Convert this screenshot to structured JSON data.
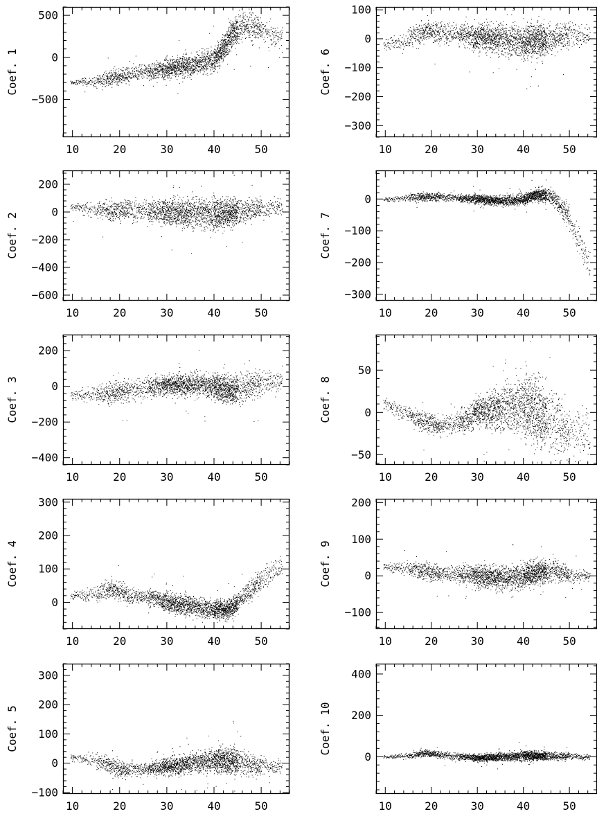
{
  "chart_data": [
    {
      "type": "scatter",
      "panel": "Coef. 1",
      "ylabel": "Coef. 1",
      "xlim": [
        8,
        56
      ],
      "ylim": [
        -950,
        600
      ],
      "xticks": [
        10,
        20,
        30,
        40,
        50
      ],
      "yticks": [
        -500,
        0,
        500
      ],
      "trend": [
        [
          10,
          -300
        ],
        [
          15,
          -280
        ],
        [
          18,
          -240
        ],
        [
          22,
          -210
        ],
        [
          27,
          -160
        ],
        [
          30,
          -130
        ],
        [
          34,
          -100
        ],
        [
          38,
          -60
        ],
        [
          40,
          -20
        ],
        [
          42,
          120
        ],
        [
          44,
          300
        ],
        [
          46,
          380
        ],
        [
          50,
          330
        ],
        [
          53,
          250
        ]
      ],
      "spread": [
        [
          10,
          20
        ],
        [
          17,
          80
        ],
        [
          25,
          80
        ],
        [
          30,
          100
        ],
        [
          40,
          120
        ],
        [
          46,
          150
        ],
        [
          53,
          120
        ]
      ]
    },
    {
      "type": "scatter",
      "panel": "Coef. 6",
      "ylabel": "Coef. 6",
      "xlim": [
        8,
        56
      ],
      "ylim": [
        -340,
        110
      ],
      "xticks": [
        10,
        20,
        30,
        40,
        50
      ],
      "yticks": [
        -300,
        -200,
        -100,
        0,
        100
      ],
      "trend": [
        [
          10,
          -20
        ],
        [
          15,
          0
        ],
        [
          19,
          30
        ],
        [
          22,
          20
        ],
        [
          27,
          15
        ],
        [
          30,
          5
        ],
        [
          35,
          0
        ],
        [
          40,
          -10
        ],
        [
          45,
          0
        ],
        [
          50,
          15
        ],
        [
          54,
          10
        ]
      ],
      "spread": [
        [
          10,
          15
        ],
        [
          17,
          35
        ],
        [
          25,
          30
        ],
        [
          30,
          40
        ],
        [
          40,
          50
        ],
        [
          46,
          45
        ],
        [
          53,
          30
        ]
      ]
    },
    {
      "type": "scatter",
      "panel": "Coef. 2",
      "ylabel": "Coef. 2",
      "xlim": [
        8,
        56
      ],
      "ylim": [
        -640,
        300
      ],
      "xticks": [
        10,
        20,
        30,
        40,
        50
      ],
      "yticks": [
        -600,
        -400,
        -200,
        0,
        200
      ],
      "trend": [
        [
          10,
          40
        ],
        [
          15,
          20
        ],
        [
          20,
          10
        ],
        [
          25,
          10
        ],
        [
          30,
          0
        ],
        [
          35,
          -5
        ],
        [
          40,
          -10
        ],
        [
          43,
          0
        ],
        [
          47,
          10
        ],
        [
          52,
          30
        ]
      ],
      "spread": [
        [
          10,
          30
        ],
        [
          17,
          60
        ],
        [
          25,
          70
        ],
        [
          30,
          80
        ],
        [
          40,
          100
        ],
        [
          46,
          80
        ],
        [
          53,
          50
        ]
      ]
    },
    {
      "type": "scatter",
      "panel": "Coef. 7",
      "ylabel": "Coef. 7",
      "xlim": [
        8,
        56
      ],
      "ylim": [
        -320,
        90
      ],
      "xticks": [
        10,
        20,
        30,
        40,
        50
      ],
      "yticks": [
        -300,
        -200,
        -100,
        0
      ],
      "trend": [
        [
          10,
          0
        ],
        [
          15,
          5
        ],
        [
          20,
          8
        ],
        [
          25,
          5
        ],
        [
          30,
          0
        ],
        [
          35,
          -5
        ],
        [
          40,
          0
        ],
        [
          43,
          15
        ],
        [
          46,
          10
        ],
        [
          48,
          -20
        ],
        [
          50,
          -60
        ],
        [
          52,
          -130
        ],
        [
          54,
          -200
        ],
        [
          56,
          -260
        ]
      ],
      "spread": [
        [
          10,
          5
        ],
        [
          17,
          12
        ],
        [
          25,
          10
        ],
        [
          30,
          12
        ],
        [
          40,
          15
        ],
        [
          46,
          20
        ],
        [
          53,
          40
        ]
      ]
    },
    {
      "type": "scatter",
      "panel": "Coef. 3",
      "ylabel": "Coef. 3",
      "xlim": [
        8,
        56
      ],
      "ylim": [
        -440,
        290
      ],
      "xticks": [
        10,
        20,
        30,
        40,
        50
      ],
      "yticks": [
        -400,
        -200,
        0,
        200
      ],
      "trend": [
        [
          10,
          -50
        ],
        [
          15,
          -40
        ],
        [
          20,
          -30
        ],
        [
          25,
          -10
        ],
        [
          30,
          10
        ],
        [
          35,
          15
        ],
        [
          40,
          0
        ],
        [
          43,
          -20
        ],
        [
          47,
          0
        ],
        [
          52,
          30
        ]
      ],
      "spread": [
        [
          10,
          25
        ],
        [
          17,
          50
        ],
        [
          25,
          50
        ],
        [
          30,
          50
        ],
        [
          40,
          60
        ],
        [
          46,
          70
        ],
        [
          53,
          50
        ]
      ]
    },
    {
      "type": "scatter",
      "panel": "Coef. 8",
      "ylabel": "Coef. 8",
      "xlim": [
        8,
        56
      ],
      "ylim": [
        -62,
        92
      ],
      "xticks": [
        10,
        20,
        30,
        40,
        50
      ],
      "yticks": [
        -50,
        0,
        50
      ],
      "trend": [
        [
          10,
          10
        ],
        [
          14,
          0
        ],
        [
          18,
          -10
        ],
        [
          22,
          -15
        ],
        [
          26,
          -10
        ],
        [
          30,
          0
        ],
        [
          35,
          5
        ],
        [
          40,
          10
        ],
        [
          43,
          0
        ],
        [
          46,
          -10
        ],
        [
          50,
          -20
        ],
        [
          55,
          -30
        ]
      ],
      "spread": [
        [
          10,
          6
        ],
        [
          17,
          10
        ],
        [
          25,
          10
        ],
        [
          30,
          15
        ],
        [
          40,
          30
        ],
        [
          44,
          35
        ],
        [
          53,
          25
        ]
      ]
    },
    {
      "type": "scatter",
      "panel": "Coef. 4",
      "ylabel": "Coef. 4",
      "xlim": [
        8,
        56
      ],
      "ylim": [
        -80,
        310
      ],
      "xticks": [
        10,
        20,
        30,
        40,
        50
      ],
      "yticks": [
        0,
        100,
        200,
        300
      ],
      "trend": [
        [
          10,
          20
        ],
        [
          15,
          30
        ],
        [
          18,
          40
        ],
        [
          22,
          20
        ],
        [
          27,
          15
        ],
        [
          30,
          0
        ],
        [
          35,
          -10
        ],
        [
          40,
          -20
        ],
        [
          43,
          -20
        ],
        [
          46,
          10
        ],
        [
          48,
          40
        ],
        [
          50,
          70
        ],
        [
          53,
          100
        ]
      ],
      "spread": [
        [
          10,
          10
        ],
        [
          17,
          25
        ],
        [
          25,
          20
        ],
        [
          30,
          25
        ],
        [
          40,
          25
        ],
        [
          46,
          25
        ],
        [
          53,
          30
        ]
      ]
    },
    {
      "type": "scatter",
      "panel": "Coef. 9",
      "ylabel": "Coef. 9",
      "xlim": [
        8,
        56
      ],
      "ylim": [
        -145,
        210
      ],
      "xticks": [
        10,
        20,
        30,
        40,
        50
      ],
      "yticks": [
        -100,
        0,
        100,
        200
      ],
      "trend": [
        [
          10,
          25
        ],
        [
          15,
          20
        ],
        [
          20,
          10
        ],
        [
          25,
          5
        ],
        [
          30,
          0
        ],
        [
          35,
          -5
        ],
        [
          40,
          0
        ],
        [
          43,
          10
        ],
        [
          46,
          15
        ],
        [
          50,
          5
        ],
        [
          53,
          0
        ]
      ],
      "spread": [
        [
          10,
          8
        ],
        [
          17,
          20
        ],
        [
          25,
          20
        ],
        [
          30,
          25
        ],
        [
          40,
          30
        ],
        [
          46,
          25
        ],
        [
          53,
          15
        ]
      ]
    },
    {
      "type": "scatter",
      "panel": "Coef. 5",
      "ylabel": "Coef. 5",
      "xlim": [
        8,
        56
      ],
      "ylim": [
        -105,
        340
      ],
      "xticks": [
        10,
        20,
        30,
        40,
        50
      ],
      "yticks": [
        -100,
        0,
        100,
        200,
        300
      ],
      "trend": [
        [
          10,
          20
        ],
        [
          15,
          10
        ],
        [
          20,
          -20
        ],
        [
          25,
          -20
        ],
        [
          30,
          -10
        ],
        [
          35,
          0
        ],
        [
          40,
          10
        ],
        [
          43,
          10
        ],
        [
          46,
          0
        ],
        [
          50,
          -10
        ],
        [
          53,
          -10
        ]
      ],
      "spread": [
        [
          10,
          10
        ],
        [
          17,
          25
        ],
        [
          25,
          20
        ],
        [
          30,
          25
        ],
        [
          40,
          35
        ],
        [
          44,
          40
        ],
        [
          53,
          20
        ]
      ]
    },
    {
      "type": "scatter",
      "panel": "Coef. 10",
      "ylabel": "Coef. 10",
      "xlim": [
        8,
        56
      ],
      "ylim": [
        -180,
        450
      ],
      "xticks": [
        10,
        20,
        30,
        40,
        50
      ],
      "yticks": [
        0,
        200,
        400
      ],
      "trend": [
        [
          10,
          0
        ],
        [
          15,
          5
        ],
        [
          19,
          20
        ],
        [
          22,
          10
        ],
        [
          27,
          0
        ],
        [
          30,
          -5
        ],
        [
          35,
          0
        ],
        [
          40,
          5
        ],
        [
          45,
          5
        ],
        [
          50,
          5
        ],
        [
          53,
          0
        ]
      ],
      "spread": [
        [
          10,
          8
        ],
        [
          17,
          15
        ],
        [
          25,
          15
        ],
        [
          30,
          15
        ],
        [
          40,
          20
        ],
        [
          46,
          18
        ],
        [
          53,
          10
        ]
      ]
    }
  ]
}
